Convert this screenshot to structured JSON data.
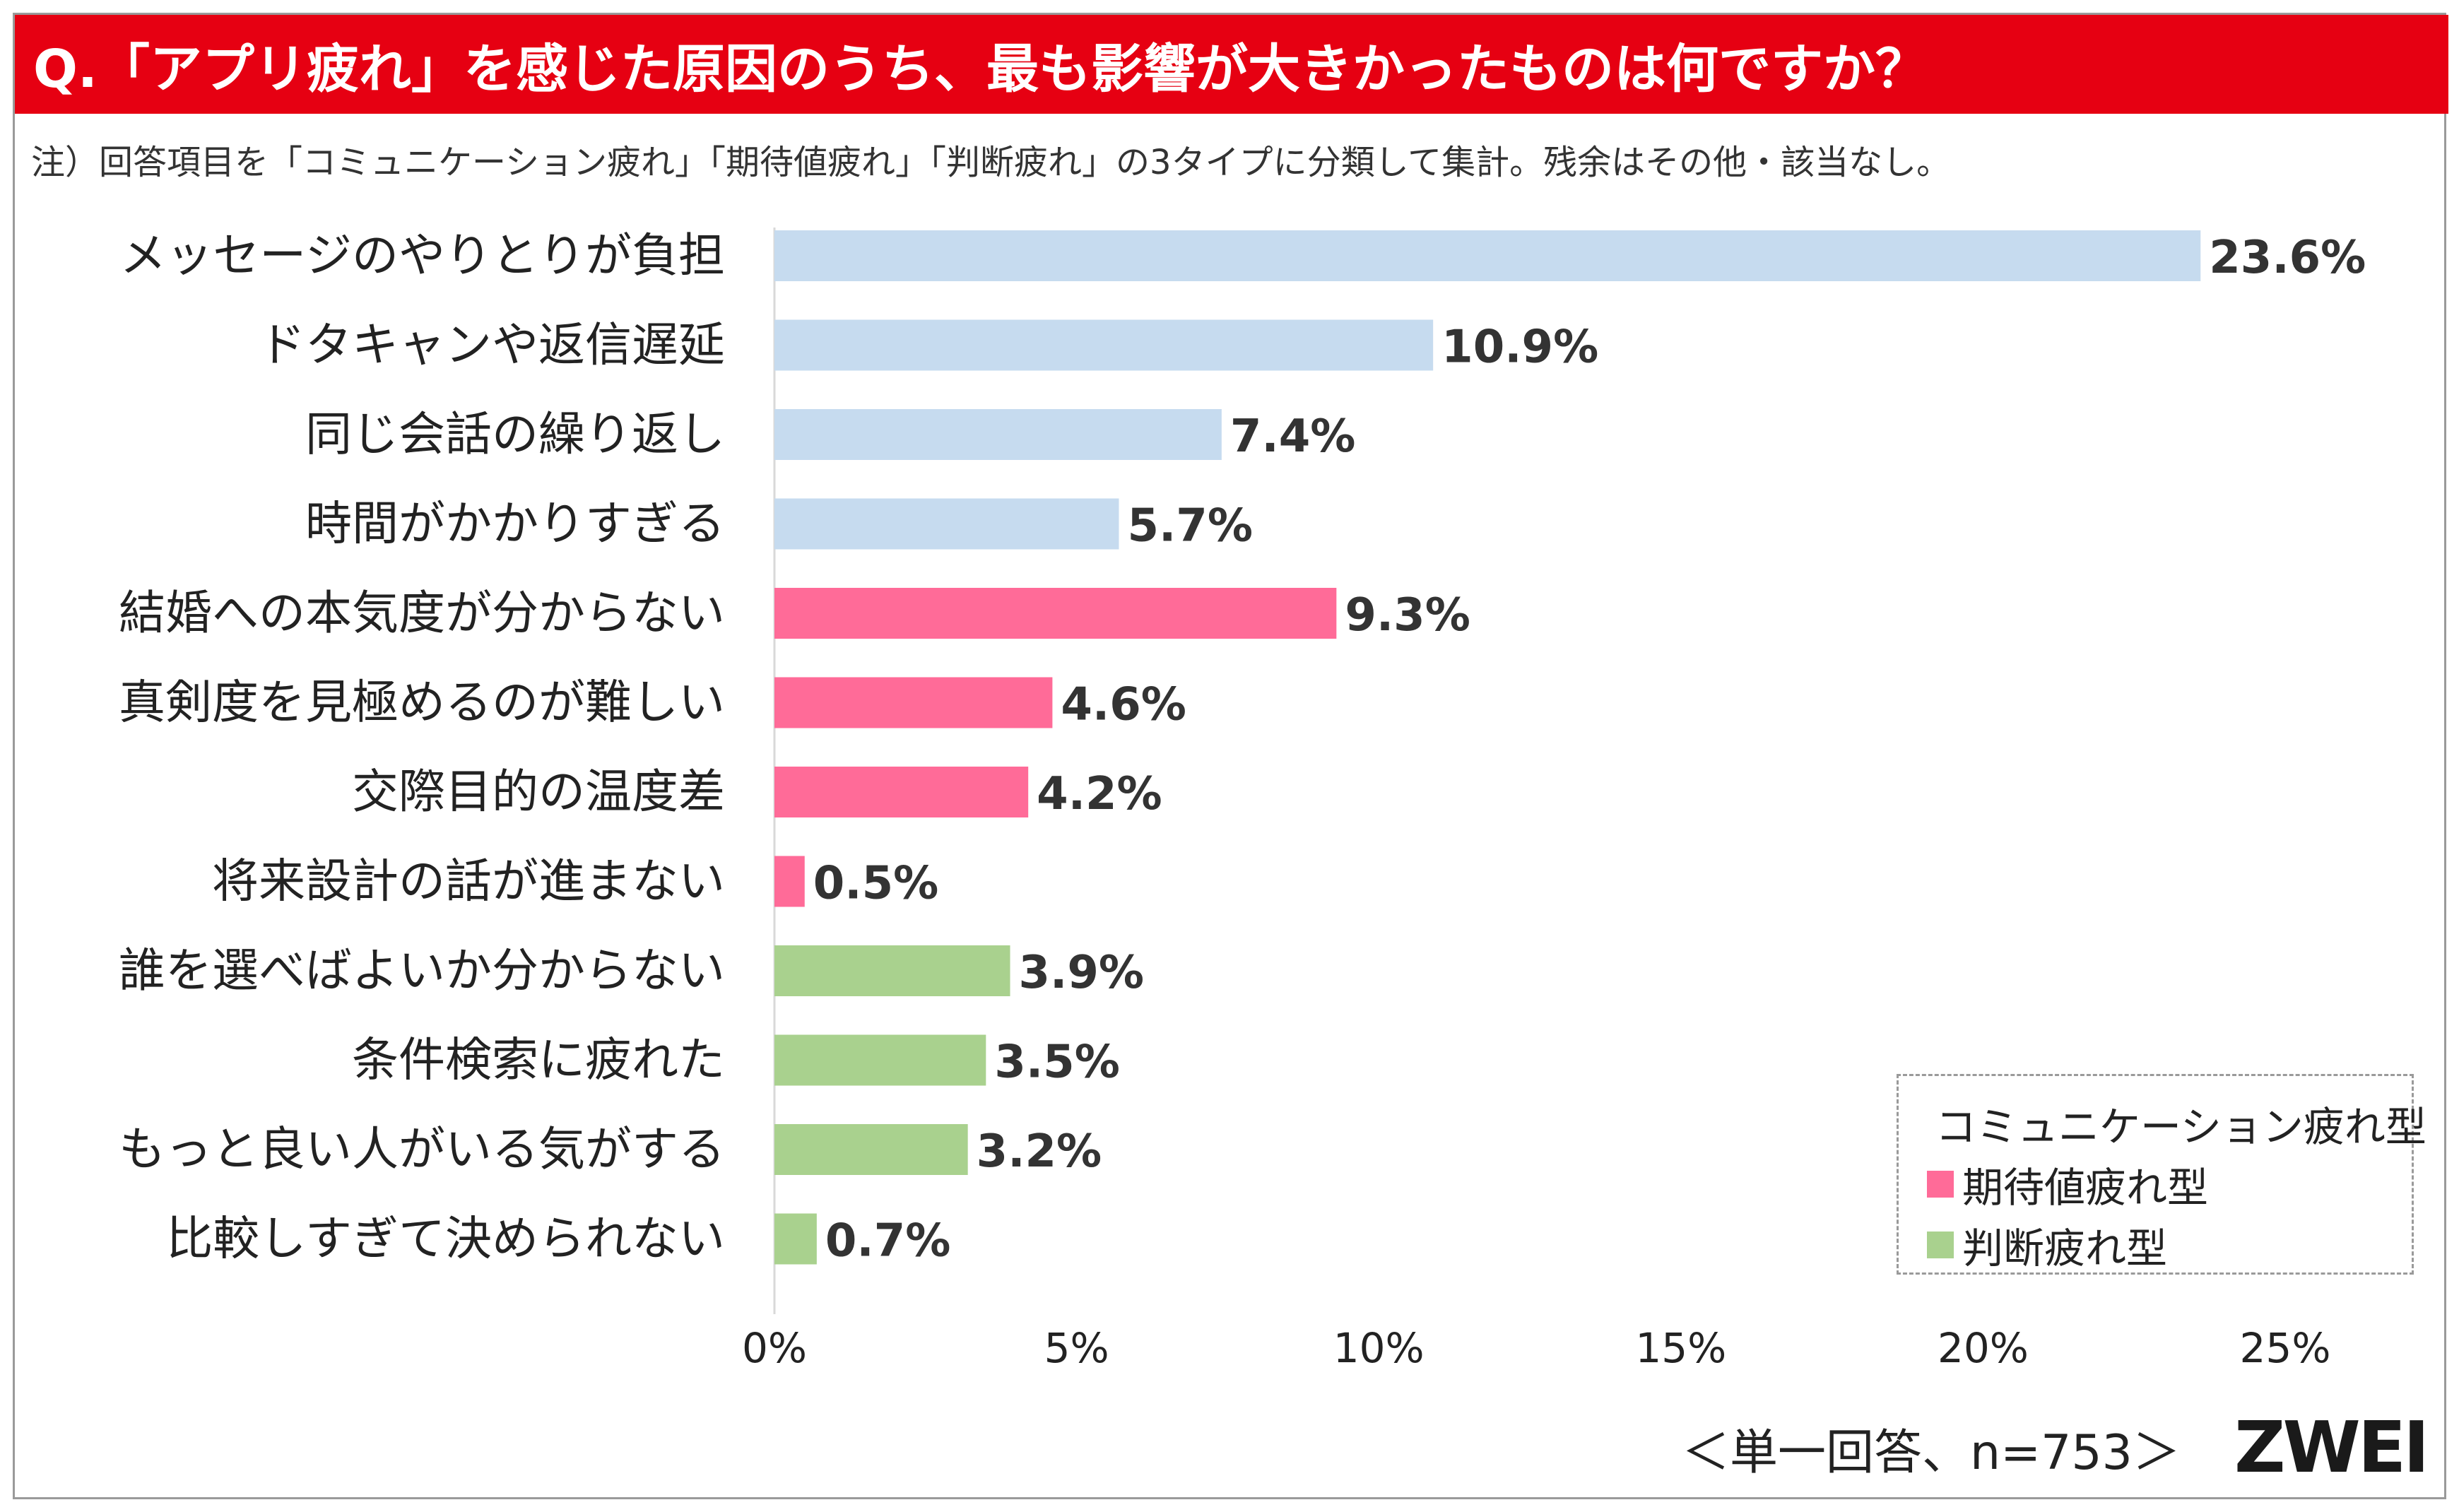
{
  "title": "Q.「アプリ疲れ」を感じた原因のうち、最も影響が大きかったものは何ですか？",
  "note": "注）回答項目を「コミュニケーション疲れ」「期待値疲れ」「判断疲れ」の3タイプに分類して集計。残余はその他・該当なし。",
  "footer_note": "＜単一回答、n=753＞",
  "logo_text": "ZWEI",
  "colors": {
    "title_bg": "#e60012",
    "communication": "#c6dbef",
    "expectation": "#ff6b98",
    "judgment": "#a9d18e",
    "value_label": "#333333",
    "axis_label": "#222222"
  },
  "chart_data": {
    "type": "bar",
    "orientation": "horizontal",
    "title": "Q.「アプリ疲れ」を感じた原因のうち、最も影響が大きかったものは何ですか？",
    "xlabel": "",
    "ylabel": "",
    "xlim": [
      0,
      25
    ],
    "xticks": [
      0,
      5,
      10,
      15,
      20,
      25
    ],
    "xtick_labels": [
      "0%",
      "5%",
      "10%",
      "15%",
      "20%",
      "25%"
    ],
    "grid": false,
    "legend_position": "bottom-right",
    "series": [
      {
        "name": "コミュニケーション疲れ型",
        "key": "communication"
      },
      {
        "name": "期待値疲れ型",
        "key": "expectation"
      },
      {
        "name": "判断疲れ型",
        "key": "judgment"
      }
    ],
    "categories": [
      "メッセージのやりとりが負担",
      "ドタキャンや返信遅延",
      "同じ会話の繰り返し",
      "時間がかかりすぎる",
      "結婚への本気度が分からない",
      "真剣度を見極めるのが難しい",
      "交際目的の温度差",
      "将来設計の話が進まない",
      "誰を選べばよいか分からない",
      "条件検索に疲れた",
      "もっと良い人がいる気がする",
      "比較しすぎて決められない"
    ],
    "values": [
      23.6,
      10.9,
      7.4,
      5.7,
      9.3,
      4.6,
      4.2,
      0.5,
      3.9,
      3.5,
      3.2,
      0.7
    ],
    "value_labels": [
      "23.6%",
      "10.9%",
      "7.4%",
      "5.7%",
      "9.3%",
      "4.6%",
      "4.2%",
      "0.5%",
      "3.9%",
      "3.5%",
      "3.2%",
      "0.7%"
    ],
    "groups": [
      "communication",
      "communication",
      "communication",
      "communication",
      "expectation",
      "expectation",
      "expectation",
      "expectation",
      "judgment",
      "judgment",
      "judgment",
      "judgment"
    ]
  }
}
